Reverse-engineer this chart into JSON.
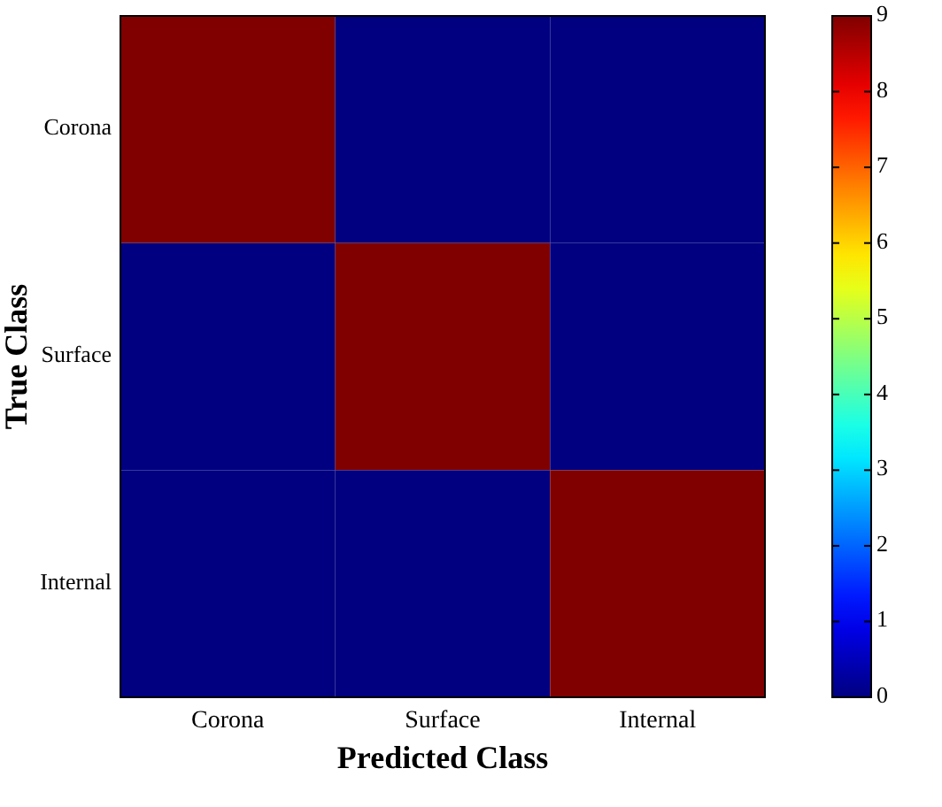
{
  "chart_data": {
    "type": "heatmap",
    "xlabel": "Predicted Class",
    "ylabel": "True Class",
    "categories": [
      "Corona",
      "Surface",
      "Internal"
    ],
    "y_categories": [
      "Corona",
      "Surface",
      "Internal"
    ],
    "cells": [
      [
        9,
        0,
        0
      ],
      [
        0,
        9,
        0
      ],
      [
        0,
        0,
        9
      ]
    ],
    "clim": [
      0,
      9
    ],
    "cticks": [
      0,
      1,
      2,
      3,
      4,
      5,
      6,
      7,
      8,
      9
    ]
  }
}
